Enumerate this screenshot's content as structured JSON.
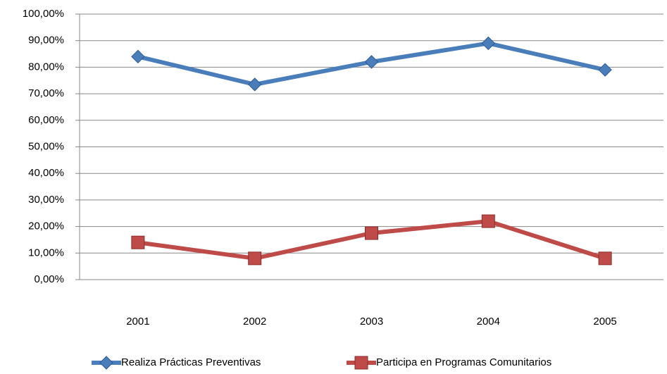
{
  "chart_data": {
    "type": "line",
    "categories": [
      "2001",
      "2002",
      "2003",
      "2004",
      "2005"
    ],
    "series": [
      {
        "name": "Realiza Prácticas Preventivas",
        "color": "#4a7ebb",
        "marker": "diamond",
        "values": [
          84,
          73.5,
          82,
          89,
          79
        ]
      },
      {
        "name": "Participa en Programas Comunitarios",
        "color": "#be4b48",
        "marker": "square",
        "values": [
          14,
          8,
          17.5,
          22,
          8
        ]
      }
    ],
    "ylim": [
      0,
      100
    ],
    "yticks": [
      {
        "value": 0,
        "label": "0,00%"
      },
      {
        "value": 10,
        "label": "10,00%"
      },
      {
        "value": 20,
        "label": "20,00%"
      },
      {
        "value": 30,
        "label": "30,00%"
      },
      {
        "value": 40,
        "label": "40,00%"
      },
      {
        "value": 50,
        "label": "50,00%"
      },
      {
        "value": 60,
        "label": "60,00%"
      },
      {
        "value": 70,
        "label": "70,00%"
      },
      {
        "value": 80,
        "label": "80,00%"
      },
      {
        "value": 90,
        "label": "90,00%"
      },
      {
        "value": 100,
        "label": "100,00%"
      }
    ],
    "grid": true,
    "legend": "bottom"
  }
}
